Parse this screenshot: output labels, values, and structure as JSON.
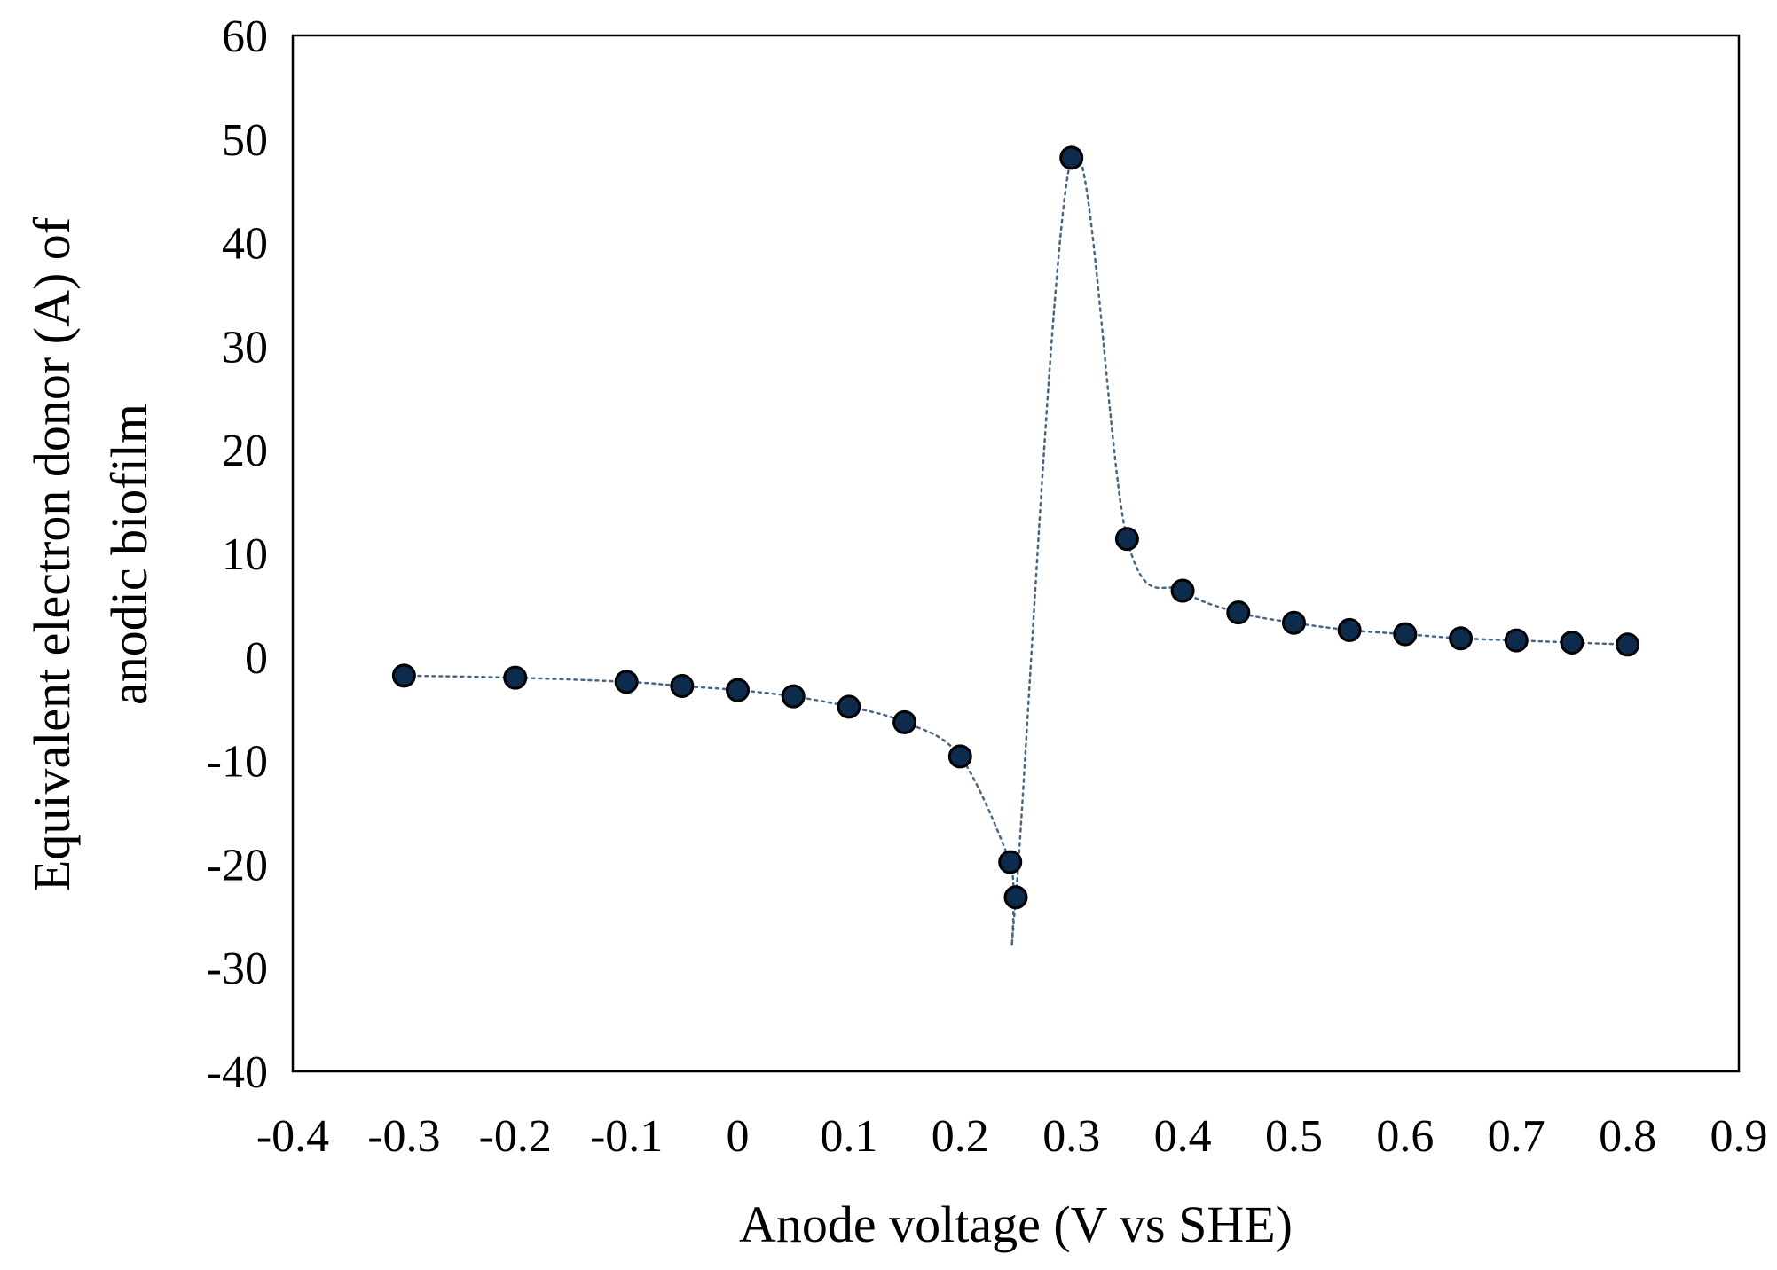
{
  "colors": {
    "marker_fill": "#0d2b4c",
    "marker_stroke": "#000000",
    "line": "#4a6685",
    "axes": "#000000",
    "background": "#ffffff"
  },
  "chart_data": {
    "type": "scatter",
    "title": "",
    "xlabel": "Anode voltage (V vs SHE)",
    "ylabel_line1": "Equivalent electron donor (A) of",
    "ylabel_line2": "anodic biofilm",
    "xlim": [
      -0.4,
      0.9
    ],
    "ylim": [
      -40,
      60
    ],
    "grid": false,
    "legend": "none",
    "x_ticks": [
      -0.4,
      -0.3,
      -0.2,
      -0.1,
      0,
      0.1,
      0.2,
      0.3,
      0.4,
      0.5,
      0.6,
      0.7,
      0.8,
      0.9
    ],
    "x_tick_labels": [
      "-0.4",
      "-0.3",
      "-0.2",
      "-0.1",
      "0",
      "0.1",
      "0.2",
      "0.3",
      "0.4",
      "0.5",
      "0.6",
      "0.7",
      "0.8",
      "0.9"
    ],
    "y_ticks": [
      60,
      50,
      40,
      30,
      20,
      10,
      0,
      -10,
      -20,
      -30,
      -40
    ],
    "y_tick_labels": [
      "60",
      "50",
      "40",
      "30",
      "20",
      "10",
      "0",
      "-10",
      "-20",
      "-30",
      "-40"
    ],
    "series": [
      {
        "name": "Equivalent electron donor",
        "marker": "circle",
        "line": "dotted, smoothed",
        "x": [
          -0.3,
          -0.2,
          -0.1,
          -0.05,
          0,
          0.05,
          0.1,
          0.15,
          0.2,
          0.245,
          0.25,
          0.3,
          0.35,
          0.4,
          0.45,
          0.5,
          0.55,
          0.6,
          0.65,
          0.7,
          0.75,
          0.8
        ],
        "y": [
          -1.8,
          -2.0,
          -2.4,
          -2.8,
          -3.2,
          -3.8,
          -4.8,
          -6.3,
          -9.6,
          -19.8,
          -23.2,
          48.2,
          11.4,
          6.4,
          4.3,
          3.3,
          2.6,
          2.2,
          1.8,
          1.6,
          1.4,
          1.2
        ]
      }
    ]
  }
}
